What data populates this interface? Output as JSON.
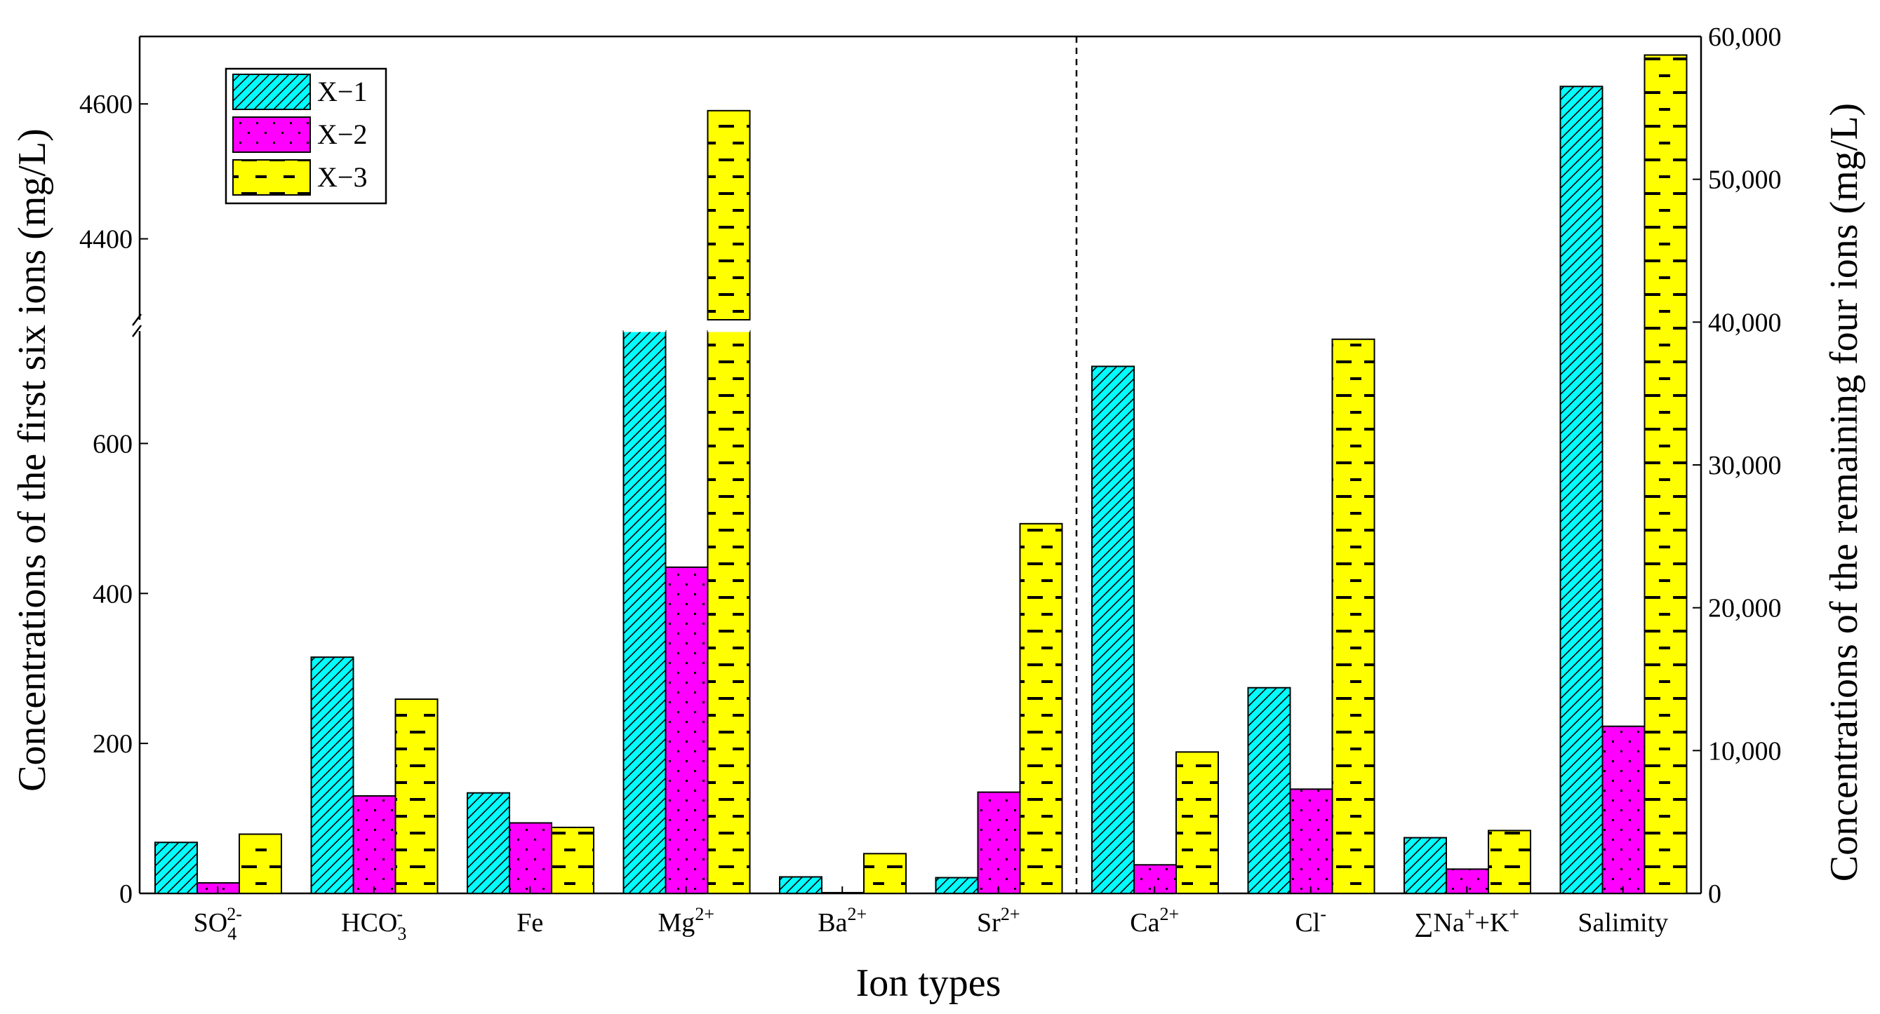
{
  "chart_data": {
    "type": "bar",
    "xlabel": "Ion types",
    "ylabel_left": "Concentrations of the first six ions (mg/L)",
    "ylabel_right": "Concentrations of the remaining four ions (mg/L)",
    "legend_position": "top-left",
    "series": [
      {
        "name": "X−1",
        "color": "#00ffff",
        "pattern": "hatch"
      },
      {
        "name": "X−2",
        "color": "#ff00ff",
        "pattern": "dots"
      },
      {
        "name": "X−3",
        "color": "#ffff00",
        "pattern": "dashes"
      }
    ],
    "left_axis": {
      "lower_range": [
        0,
        750
      ],
      "lower_ticks": [
        "0",
        "200",
        "400",
        "600"
      ],
      "upper_range": [
        4280,
        4700
      ],
      "upper_ticks": [
        "4400",
        "4600"
      ],
      "broken": true
    },
    "right_axis": {
      "range": [
        0,
        60000
      ],
      "ticks": [
        "0",
        "10,000",
        "20,000",
        "30,000",
        "40,000",
        "50,000",
        "60,000"
      ]
    },
    "groups": [
      {
        "axis": "left",
        "label": {
          "base": "SO",
          "sub": "4",
          "sup": "2-"
        },
        "values": [
          68,
          14,
          79
        ]
      },
      {
        "axis": "left",
        "label": {
          "base": "HCO",
          "sub": "3",
          "sup": "-"
        },
        "values": [
          315,
          130,
          259
        ]
      },
      {
        "axis": "left",
        "label": {
          "base": "Fe"
        },
        "values": [
          134,
          94,
          88
        ]
      },
      {
        "axis": "left",
        "label": {
          "base": "Mg",
          "sup": "2+"
        },
        "values": [
          762,
          435,
          4590
        ]
      },
      {
        "axis": "left",
        "label": {
          "base": "Ba",
          "sup": "2+"
        },
        "values": [
          22,
          1,
          53
        ]
      },
      {
        "axis": "left",
        "label": {
          "base": "Sr",
          "sup": "2+"
        },
        "values": [
          21,
          135,
          493
        ]
      },
      {
        "axis": "right",
        "label": {
          "base": "Ca",
          "sup": "2+"
        },
        "values": [
          36900,
          2000,
          9900
        ]
      },
      {
        "axis": "right",
        "label": {
          "base": "Cl",
          "sup": "-"
        },
        "values": [
          14400,
          7300,
          38800
        ]
      },
      {
        "axis": "right",
        "label": {
          "base": "∑Na",
          "sup": "+",
          "mid": "+K",
          "sup2": "+"
        },
        "values": [
          3900,
          1700,
          4400
        ]
      },
      {
        "axis": "right",
        "label": {
          "base": "Salimity"
        },
        "values": [
          56500,
          11700,
          58700
        ]
      }
    ]
  }
}
